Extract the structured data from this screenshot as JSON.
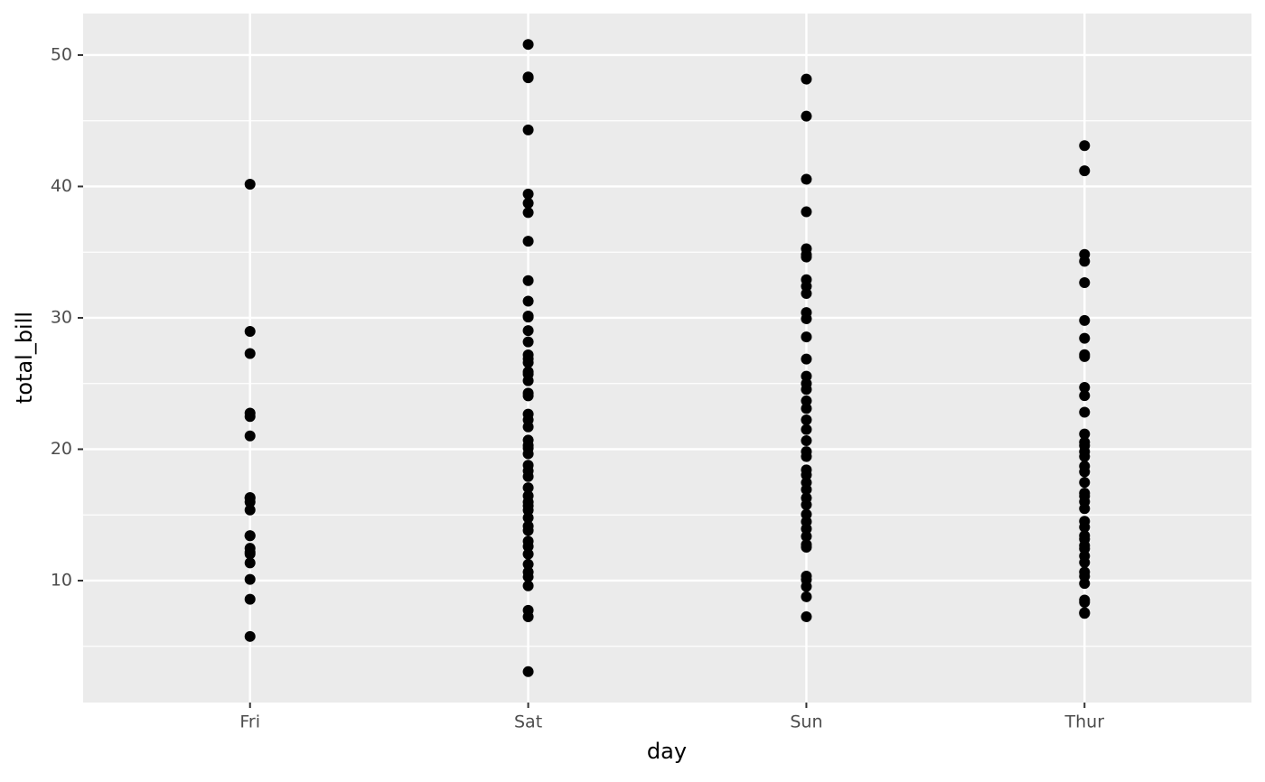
{
  "chart_data": {
    "type": "strip",
    "x_label": "day",
    "y_label": "total_bill",
    "categories": [
      "Fri",
      "Sat",
      "Sun",
      "Thur"
    ],
    "values": [
      [
        28.97,
        22.49,
        5.75,
        16.32,
        22.75,
        40.17,
        27.28,
        12.03,
        21.01,
        12.46,
        11.35,
        15.38,
        12.16,
        13.42,
        8.58,
        15.98,
        13.42,
        16.27,
        10.09
      ],
      [
        50.81,
        48.33,
        48.27,
        44.3,
        39.42,
        38.73,
        38.01,
        35.83,
        32.83,
        31.27,
        30.14,
        30.06,
        29.03,
        28.17,
        27.18,
        26.88,
        26.59,
        25.89,
        25.71,
        25.21,
        24.27,
        24.06,
        22.67,
        22.23,
        21.7,
        20.69,
        20.29,
        20.08,
        19.65,
        18.78,
        18.35,
        17.92,
        17.07,
        16.45,
        15.98,
        15.69,
        15.36,
        14.78,
        14.15,
        13.81,
        13.0,
        12.6,
        12.02,
        11.24,
        10.65,
        10.29,
        9.6,
        7.74,
        7.25,
        3.07
      ],
      [
        48.17,
        45.35,
        40.55,
        38.07,
        35.26,
        34.81,
        34.63,
        32.9,
        32.4,
        31.85,
        30.4,
        29.93,
        28.55,
        26.86,
        25.56,
        25.0,
        24.55,
        23.68,
        23.1,
        22.23,
        21.5,
        20.65,
        19.82,
        19.44,
        18.43,
        18.04,
        17.46,
        16.93,
        16.29,
        15.77,
        15.04,
        14.48,
        13.94,
        13.37,
        12.74,
        12.54,
        10.34,
        10.07,
        9.55,
        8.77,
        7.25
      ],
      [
        43.11,
        41.19,
        34.83,
        34.3,
        32.68,
        29.8,
        28.44,
        27.2,
        27.05,
        24.71,
        24.08,
        22.82,
        21.16,
        20.53,
        20.27,
        19.81,
        19.44,
        18.71,
        18.28,
        17.47,
        16.66,
        16.43,
        16.0,
        15.48,
        14.52,
        14.07,
        13.42,
        13.16,
        12.66,
        12.43,
        11.87,
        11.38,
        10.65,
        10.33,
        9.78,
        8.52,
        8.35,
        7.56,
        7.51
      ]
    ],
    "color": "#000000",
    "ylim": [
      0.72,
      53.16
    ],
    "yticks": [
      10,
      20,
      30,
      40,
      50
    ],
    "minor_yticks": [
      5,
      15,
      25,
      35,
      45
    ],
    "grid": true
  }
}
